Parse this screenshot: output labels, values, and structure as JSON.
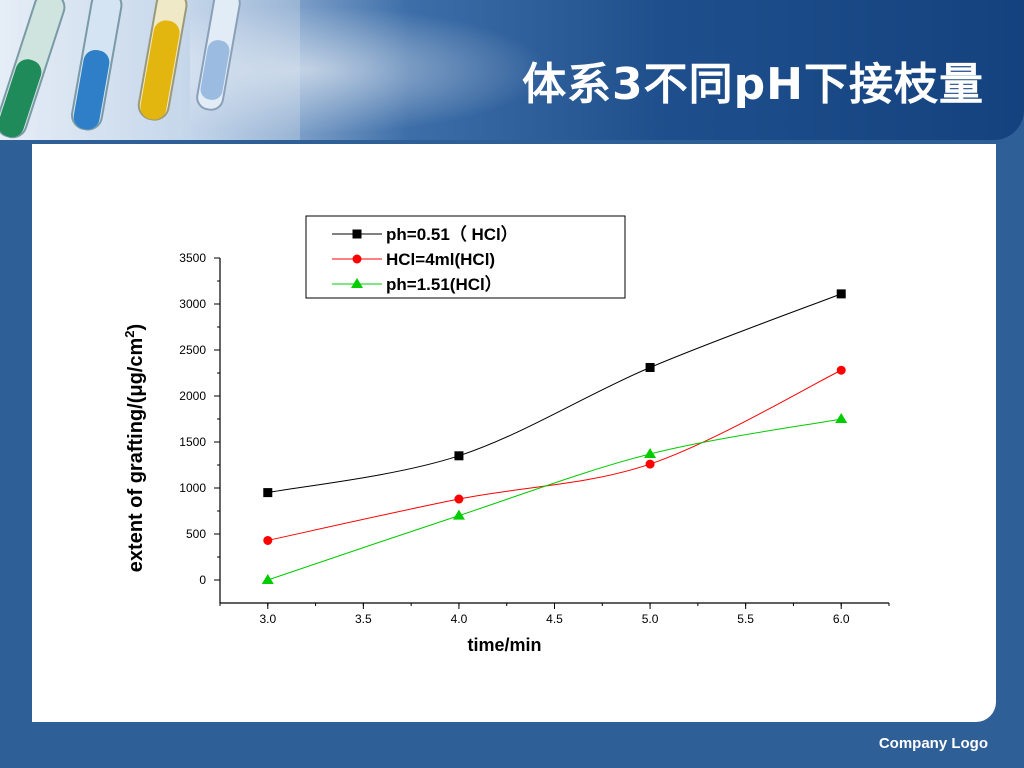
{
  "slide": {
    "title": "体系3不同pH下接枝量",
    "logo_text": "Company Logo",
    "colors": {
      "frame": "#2f5f97",
      "header_dark": "#14427f",
      "panel": "#ffffff"
    }
  },
  "chart_data": {
    "type": "line",
    "title": "",
    "xlabel": "time/min",
    "ylabel_main": "extent of grafting/(",
    "ylabel_unit": "μg/cm",
    "ylabel_sup": "2",
    "ylabel_close": ")",
    "x": [
      3.0,
      4.0,
      5.0,
      6.0
    ],
    "xlim": [
      2.75,
      6.25
    ],
    "ylim": [
      -250,
      3500
    ],
    "xticks": [
      "3.0",
      "3.5",
      "4.0",
      "4.5",
      "5.0",
      "5.5",
      "6.0"
    ],
    "yticks": [
      "0",
      "500",
      "1000",
      "1500",
      "2000",
      "2500",
      "3000",
      "3500"
    ],
    "legend_position": "top",
    "series": [
      {
        "name": "ph=0.51（ HCl）",
        "color": "#000000",
        "marker": "square",
        "values": [
          950,
          1350,
          2310,
          3110
        ]
      },
      {
        "name": "HCl=4ml(HCl)",
        "color": "#ff0000",
        "marker": "circle",
        "values": [
          430,
          880,
          1260,
          2280
        ]
      },
      {
        "name": "ph=1.51(HCl）",
        "color": "#00cc00",
        "marker": "triangle",
        "values": [
          0,
          700,
          1370,
          1750
        ]
      }
    ]
  }
}
